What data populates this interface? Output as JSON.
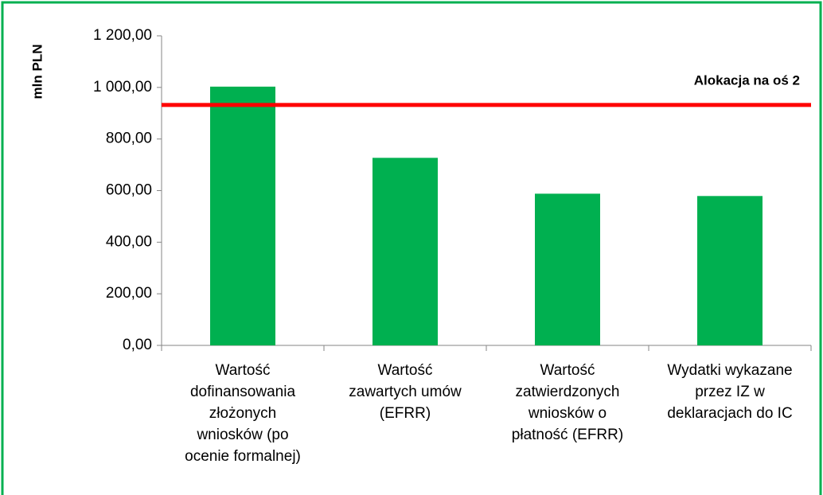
{
  "chart_data": {
    "type": "bar",
    "ylabel": "mln PLN",
    "categories": [
      "Wartość\ndofinansowania\nzłożonych\nwniosków (po\nocenie formalnej)",
      "Wartość\nzawartych umów\n(EFRR)",
      "Wartość\nzatwierdzonych\nwniosków o\npłatność (EFRR)",
      "Wydatki wykazane\nprzez IZ w\ndeklaracjach do IC"
    ],
    "values": [
      1003,
      727,
      588,
      579
    ],
    "color": "#00b050",
    "ylim": [
      0,
      1200
    ],
    "yticks": [
      {
        "value": 0,
        "label": "0,00"
      },
      {
        "value": 200,
        "label": "200,00"
      },
      {
        "value": 400,
        "label": "400,00"
      },
      {
        "value": 600,
        "label": "600,00"
      },
      {
        "value": 800,
        "label": "800,00"
      },
      {
        "value": 1000,
        "label": "1 000,00"
      },
      {
        "value": 1200,
        "label": "1 200,00"
      }
    ],
    "reference_line": {
      "value": 932,
      "label": "Alokacja na oś 2",
      "color": "#ff0000"
    }
  }
}
